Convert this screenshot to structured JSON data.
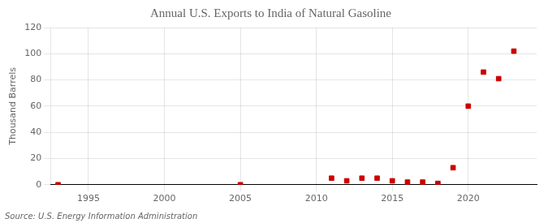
{
  "chart_data": {
    "type": "scatter",
    "title": "Annual U.S. Exports to India of Natural Gasoline",
    "ylabel": "Thousand Barrels",
    "annotations": [
      "Source: U.S. Energy Information Administration"
    ],
    "x": [
      1993,
      2005,
      2011,
      2012,
      2013,
      2014,
      2015,
      2016,
      2017,
      2018,
      2019,
      2020,
      2021,
      2022,
      2023
    ],
    "values": [
      0,
      0,
      5,
      3,
      5,
      5,
      3,
      2,
      2,
      1,
      13,
      60,
      86,
      81,
      102
    ],
    "color": "#cc0000",
    "marker": "square",
    "xlim": [
      1992.5,
      2024.5
    ],
    "ylim": [
      0,
      120
    ],
    "xticks": [
      1995,
      2000,
      2005,
      2010,
      2015,
      2020
    ],
    "yticks": [
      0,
      20,
      40,
      60,
      80,
      100,
      120
    ],
    "grid": true
  }
}
